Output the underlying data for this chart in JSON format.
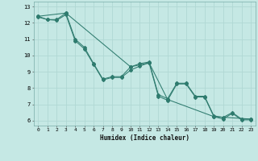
{
  "title": "",
  "xlabel": "Humidex (Indice chaleur)",
  "ylabel": "",
  "background_color": "#c5e8e4",
  "grid_color": "#b0d8d4",
  "line_color": "#2e7b6e",
  "xlim": [
    -0.5,
    23.5
  ],
  "ylim": [
    5.7,
    13.3
  ],
  "xticks": [
    0,
    1,
    2,
    3,
    4,
    5,
    6,
    7,
    8,
    9,
    10,
    11,
    12,
    13,
    14,
    15,
    16,
    17,
    18,
    19,
    20,
    21,
    22,
    23
  ],
  "yticks": [
    6,
    7,
    8,
    9,
    10,
    11,
    12,
    13
  ],
  "line1_x": [
    0,
    1,
    2,
    3,
    4,
    5,
    6,
    7,
    8,
    9,
    10,
    11,
    12,
    13,
    14,
    15,
    16,
    17,
    18,
    19,
    20,
    21,
    22,
    23
  ],
  "line1_y": [
    12.4,
    12.2,
    12.2,
    12.6,
    11.0,
    10.5,
    9.5,
    8.55,
    8.7,
    8.7,
    9.3,
    9.5,
    9.6,
    7.6,
    7.35,
    8.3,
    8.3,
    7.5,
    7.5,
    6.3,
    6.2,
    6.5,
    6.1,
    6.1
  ],
  "line2_x": [
    0,
    1,
    2,
    3,
    4,
    5,
    6,
    7,
    8,
    9,
    10,
    11,
    12,
    13,
    14,
    15,
    16,
    17,
    18,
    19,
    20,
    21,
    22,
    23
  ],
  "line2_y": [
    12.35,
    12.2,
    12.15,
    12.5,
    10.9,
    10.4,
    9.45,
    8.5,
    8.65,
    8.65,
    9.1,
    9.35,
    9.55,
    7.5,
    7.25,
    8.25,
    8.25,
    7.45,
    7.45,
    6.25,
    6.1,
    6.45,
    6.05,
    6.05
  ],
  "line3_x": [
    0,
    3,
    10,
    12,
    14,
    19,
    23
  ],
  "line3_y": [
    12.4,
    12.6,
    9.3,
    9.55,
    7.3,
    6.25,
    6.1
  ]
}
